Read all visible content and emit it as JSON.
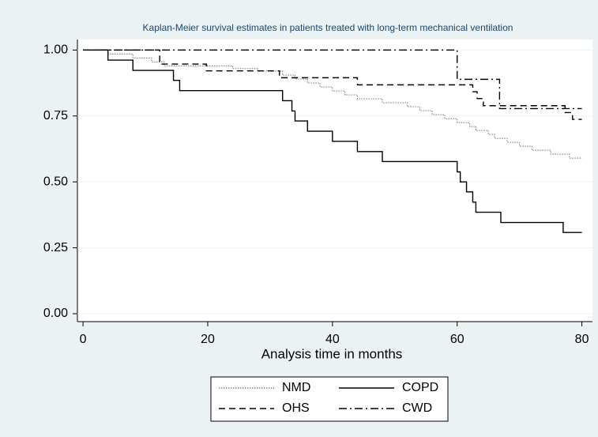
{
  "chart_data": {
    "type": "line",
    "step": true,
    "title": "Kaplan-Meier survival estimates in patients treated with long-term mechanical ventilation",
    "xlabel": "Analysis time in months",
    "xlim": [
      -0.9,
      81.7
    ],
    "ylim": [
      -0.03,
      1.04
    ],
    "xticks": [
      0,
      20,
      40,
      60,
      80
    ],
    "yticks": [
      {
        "value": 0,
        "label": "0.00"
      },
      0.25,
      {
        "value": 0.5,
        "label": "0.50"
      },
      0.75,
      {
        "value": 1,
        "label": "1.00"
      }
    ],
    "grid": true,
    "legend_position": "bottom",
    "series": [
      {
        "name": "NMD",
        "color": "#888888",
        "dash": "dotted",
        "x": [
          0,
          4,
          8,
          11,
          13,
          20,
          24,
          28,
          32,
          34,
          36,
          38,
          40,
          42,
          44,
          48,
          52,
          54,
          56,
          58,
          60,
          62,
          63,
          65,
          66,
          68,
          70,
          72,
          75,
          78,
          80
        ],
        "values": [
          1,
          0.985,
          0.97,
          0.955,
          0.94,
          0.94,
          0.93,
          0.92,
          0.905,
          0.89,
          0.875,
          0.86,
          0.845,
          0.83,
          0.815,
          0.8,
          0.785,
          0.77,
          0.755,
          0.74,
          0.725,
          0.71,
          0.695,
          0.68,
          0.665,
          0.65,
          0.635,
          0.62,
          0.605,
          0.59,
          0.59
        ]
      },
      {
        "name": "COPD",
        "color": "#000000",
        "dash": "solid",
        "x": [
          0,
          4,
          8,
          14.5,
          15.5,
          32,
          33.5,
          34,
          36,
          40,
          44,
          48,
          60,
          60.5,
          61.5,
          62.5,
          63,
          67,
          77,
          80
        ],
        "values": [
          1,
          0.962,
          0.923,
          0.885,
          0.846,
          0.808,
          0.769,
          0.731,
          0.692,
          0.654,
          0.615,
          0.577,
          0.538,
          0.5,
          0.462,
          0.423,
          0.385,
          0.346,
          0.308,
          0.308
        ]
      },
      {
        "name": "OHS",
        "color": "#000000",
        "dash": "dashed",
        "x": [
          0,
          12.3,
          19.8,
          31.5,
          44,
          62.5,
          63.2,
          64.2,
          77.3,
          78.5,
          80
        ],
        "values": [
          1,
          0.947,
          0.921,
          0.895,
          0.868,
          0.842,
          0.816,
          0.789,
          0.763,
          0.737,
          0.737
        ]
      },
      {
        "name": "CWD",
        "color": "#000000",
        "dash": "dashdot",
        "x": [
          0,
          60,
          66.8,
          80
        ],
        "values": [
          1,
          0.889,
          0.778,
          0.778
        ]
      }
    ]
  }
}
